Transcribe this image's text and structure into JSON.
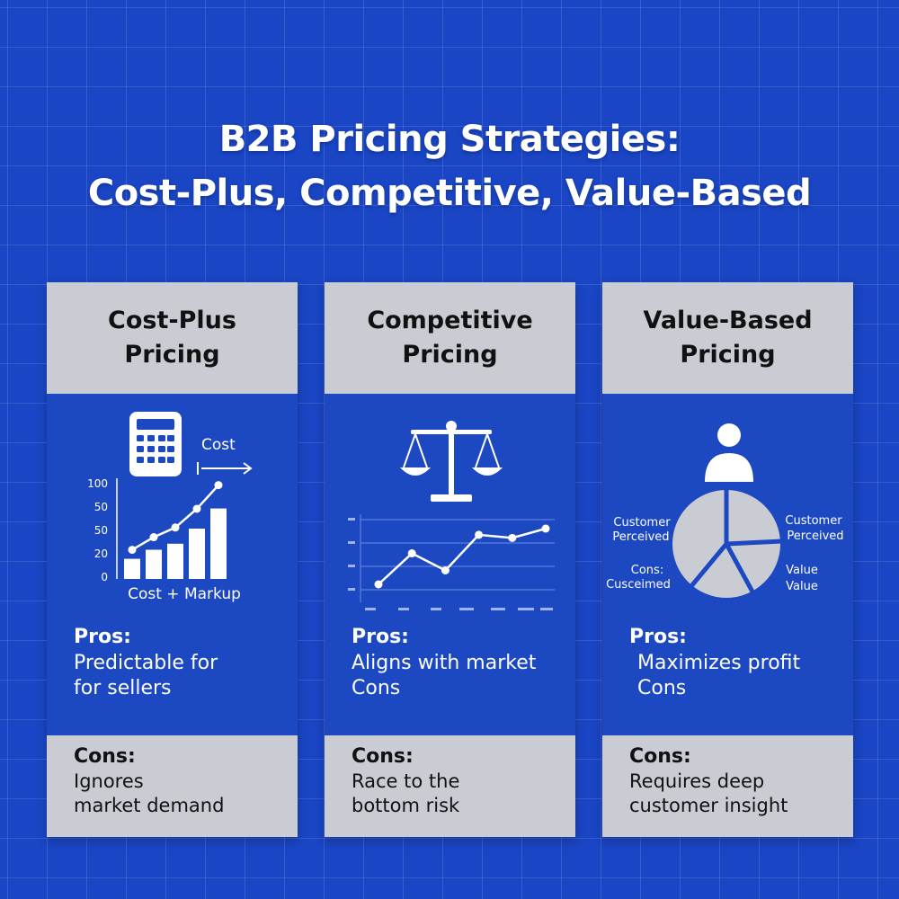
{
  "title": {
    "line1": "B2B Pricing Strategies:",
    "line2": "Cost-Plus, Competitive, Value-Based"
  },
  "colors": {
    "background": "#1a45c4",
    "panel": "#c9ccd3",
    "text_dark": "#111111",
    "text_light": "#ffffff"
  },
  "cards": [
    {
      "title_line1": "Cost-Plus",
      "title_line2": "Pricing",
      "icon": "calculator-icon",
      "illustration": {
        "arrow_label": "Cost",
        "caption": "Cost + Markup",
        "y_ticks": [
          "100",
          "50",
          "50",
          "20",
          "0"
        ],
        "bar_values": [
          20,
          29,
          35,
          50,
          70
        ]
      },
      "pros_label": "Pros:",
      "pros_lines": [
        "Predictable for",
        "for sellers"
      ],
      "cons_label": "Cons:",
      "cons_lines": [
        "Ignores",
        "market demand"
      ]
    },
    {
      "title_line1": "Competitive",
      "title_line2": "Pricing",
      "icon": "balance-scale-icon",
      "illustration": {
        "line_values": [
          0,
          40,
          18,
          64,
          60,
          72
        ]
      },
      "pros_label": "Pros:",
      "pros_lines": [
        "Aligns with market",
        "Cons"
      ],
      "cons_label": "Cons:",
      "cons_lines": [
        "Race to the",
        "bottom risk"
      ]
    },
    {
      "title_line1": "Value-Based",
      "title_line2": "Pricing",
      "icon": "person-icon",
      "illustration": {
        "pie_labels": [
          {
            "line1": "Customer",
            "line2": "Perceived"
          },
          {
            "line1": "Customer",
            "line2": "Perceived"
          },
          {
            "line1": "Cons:",
            "line2": "Cusceimed"
          },
          {
            "line1": "Value",
            "line2": "Value"
          }
        ]
      },
      "pros_label": "Pros:",
      "pros_lines": [
        "Maximizes profit",
        "Cons"
      ],
      "cons_label": "Cons:",
      "cons_lines": [
        "Requires deep",
        "customer insight"
      ]
    }
  ]
}
